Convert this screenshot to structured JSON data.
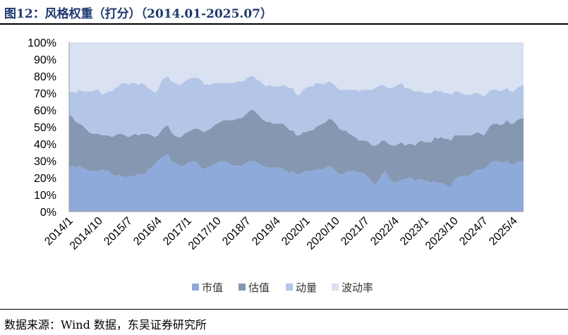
{
  "title": "图12：风格权重（打分）（2014.01-2025.07）",
  "source": "数据来源：Wind 数据，东吴证券研究所",
  "chart_data": {
    "type": "area",
    "stacked": true,
    "percent": true,
    "ylim": [
      0,
      100
    ],
    "y_ticks": [
      "0%",
      "10%",
      "20%",
      "30%",
      "40%",
      "50%",
      "60%",
      "70%",
      "80%",
      "90%",
      "100%"
    ],
    "x_tick_labels": [
      "2014/1",
      "2014/10",
      "2015/7",
      "2016/4",
      "2017/1",
      "2017/10",
      "2018/7",
      "2019/4",
      "2020/1",
      "2020/10",
      "2021/7",
      "2022/4",
      "2023/1",
      "2023/10",
      "2024/7",
      "2025/4"
    ],
    "x_tick_positions": [
      0,
      9,
      18,
      27,
      36,
      45,
      54,
      63,
      72,
      81,
      90,
      99,
      108,
      117,
      126,
      135
    ],
    "x_count": 139,
    "grid": false,
    "legend_position": "bottom",
    "series": [
      {
        "name": "市值",
        "color": "#8eaadb",
        "values": [
          26,
          27,
          26,
          27,
          26,
          25,
          24,
          24,
          24,
          24,
          25,
          24,
          24,
          22,
          21,
          22,
          21,
          20,
          21,
          21,
          21,
          22,
          22,
          22,
          25,
          26,
          28,
          30,
          32,
          33,
          34,
          30,
          29,
          28,
          27,
          27,
          29,
          29,
          30,
          29,
          26,
          25,
          26,
          27,
          28,
          29,
          30,
          30,
          29,
          28,
          27,
          27,
          27,
          28,
          29,
          30,
          30,
          29,
          28,
          27,
          26,
          26,
          26,
          26,
          26,
          25,
          24,
          23,
          24,
          22,
          22,
          23,
          24,
          24,
          24,
          25,
          25,
          25,
          26,
          27,
          26,
          24,
          22,
          22,
          23,
          24,
          24,
          24,
          23,
          23,
          22,
          20,
          17,
          16,
          18,
          22,
          24,
          20,
          18,
          17,
          18,
          19,
          19,
          20,
          20,
          18,
          19,
          19,
          18,
          18,
          17,
          18,
          17,
          17,
          16,
          15,
          15,
          19,
          20,
          21,
          21,
          21,
          22,
          24,
          25,
          25,
          25,
          27,
          29,
          30,
          30,
          29,
          29,
          30,
          28,
          28,
          29,
          30,
          29
        ]
      },
      {
        "name": "估值",
        "color": "#8597b1",
        "values": [
          31,
          29,
          27,
          25,
          25,
          24,
          23,
          22,
          22,
          22,
          20,
          21,
          21,
          22,
          24,
          24,
          25,
          25,
          23,
          24,
          25,
          23,
          24,
          24,
          21,
          19,
          16,
          15,
          16,
          17,
          17,
          17,
          16,
          16,
          17,
          19,
          18,
          19,
          19,
          20,
          22,
          22,
          22,
          22,
          23,
          23,
          23,
          24,
          25,
          26,
          27,
          28,
          28,
          28,
          29,
          30,
          30,
          29,
          28,
          27,
          27,
          27,
          26,
          26,
          26,
          27,
          26,
          25,
          24,
          23,
          23,
          24,
          23,
          24,
          24,
          25,
          26,
          27,
          27,
          28,
          28,
          28,
          27,
          26,
          25,
          22,
          21,
          20,
          19,
          19,
          20,
          21,
          22,
          23,
          22,
          20,
          18,
          20,
          21,
          22,
          22,
          22,
          20,
          20,
          20,
          21,
          22,
          23,
          23,
          23,
          24,
          26,
          26,
          27,
          27,
          28,
          27,
          26,
          25,
          24,
          24,
          24,
          23,
          22,
          22,
          21,
          20,
          21,
          22,
          22,
          22,
          22,
          23,
          24,
          24,
          24,
          25,
          25,
          26
        ]
      },
      {
        "name": "动量",
        "color": "#b4c6e7",
        "values": [
          14,
          15,
          17,
          20,
          20,
          22,
          24,
          25,
          26,
          26,
          24,
          25,
          26,
          27,
          28,
          28,
          30,
          31,
          31,
          31,
          30,
          30,
          30,
          29,
          27,
          27,
          26,
          27,
          29,
          29,
          29,
          30,
          31,
          31,
          31,
          31,
          31,
          31,
          30,
          30,
          30,
          28,
          27,
          26,
          25,
          24,
          23,
          22,
          22,
          22,
          22,
          22,
          22,
          21,
          21,
          20,
          20,
          20,
          21,
          21,
          21,
          22,
          22,
          22,
          22,
          23,
          24,
          25,
          25,
          24,
          24,
          25,
          26,
          26,
          26,
          26,
          25,
          23,
          23,
          22,
          22,
          22,
          23,
          24,
          24,
          26,
          27,
          28,
          29,
          30,
          30,
          31,
          33,
          34,
          34,
          33,
          32,
          33,
          34,
          35,
          35,
          35,
          34,
          33,
          32,
          32,
          30,
          29,
          29,
          29,
          29,
          28,
          28,
          27,
          27,
          27,
          27,
          26,
          26,
          25,
          24,
          24,
          24,
          24,
          23,
          23,
          23,
          22,
          21,
          20,
          20,
          20,
          20,
          19,
          19,
          19,
          19,
          19,
          20
        ]
      },
      {
        "name": "波动率",
        "color": "#d9e1f2",
        "values": [
          29,
          29,
          30,
          28,
          29,
          29,
          29,
          29,
          28,
          28,
          31,
          30,
          29,
          29,
          27,
          26,
          24,
          24,
          25,
          24,
          24,
          25,
          24,
          25,
          27,
          28,
          30,
          28,
          23,
          21,
          20,
          23,
          24,
          25,
          25,
          23,
          22,
          21,
          21,
          21,
          22,
          25,
          25,
          25,
          24,
          24,
          24,
          24,
          24,
          24,
          24,
          23,
          23,
          23,
          21,
          20,
          20,
          22,
          23,
          25,
          26,
          25,
          26,
          26,
          26,
          25,
          26,
          27,
          27,
          31,
          31,
          28,
          27,
          26,
          26,
          24,
          24,
          25,
          24,
          23,
          24,
          26,
          28,
          28,
          28,
          28,
          28,
          28,
          29,
          28,
          28,
          28,
          28,
          27,
          26,
          25,
          26,
          27,
          27,
          26,
          25,
          24,
          27,
          27,
          28,
          29,
          29,
          29,
          30,
          30,
          30,
          28,
          29,
          29,
          30,
          30,
          31,
          29,
          29,
          30,
          31,
          31,
          31,
          30,
          30,
          31,
          32,
          30,
          28,
          28,
          28,
          29,
          28,
          27,
          29,
          29,
          27,
          26,
          25
        ]
      }
    ]
  },
  "legend": [
    "市值",
    "估值",
    "动量",
    "波动率"
  ]
}
